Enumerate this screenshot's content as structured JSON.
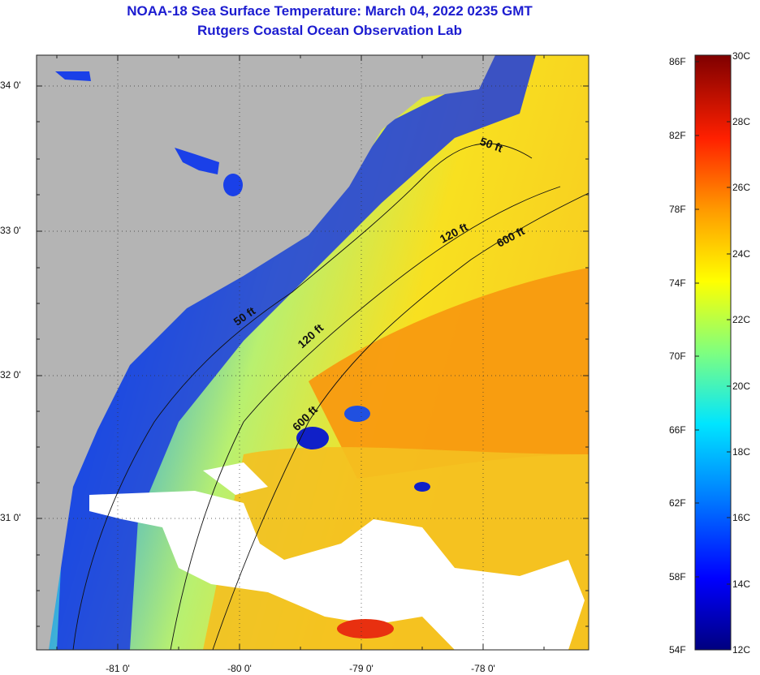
{
  "header": {
    "title": "NOAA-18 Sea Surface Temperature:  March 04, 2022 0235 GMT",
    "subtitle": "Rutgers Coastal Ocean Observation Lab"
  },
  "map": {
    "lat_labels": [
      "34 0'",
      "33 0'",
      "32 0'",
      "31 0'"
    ],
    "lon_labels": [
      "-81 0'",
      "-80 0'",
      "-79 0'",
      "-78 0'"
    ],
    "land_color": "#b4b4b4",
    "cloud_color": "#ffffff",
    "contours": [
      {
        "label": "50 ft"
      },
      {
        "label": "120 ft"
      },
      {
        "label": "600 ft"
      },
      {
        "label": "50 ft"
      },
      {
        "label": "120 ft"
      },
      {
        "label": "600 ft"
      }
    ]
  },
  "colorbar": {
    "fahrenheit_labels": [
      "86F",
      "82F",
      "78F",
      "74F",
      "70F",
      "66F",
      "62F",
      "58F",
      "54F"
    ],
    "celsius_labels": [
      "30C",
      "28C",
      "26C",
      "24C",
      "22C",
      "20C",
      "18C",
      "16C",
      "14C",
      "12C"
    ],
    "colors": [
      "#00007f",
      "#0000ff",
      "#007fff",
      "#00ffff",
      "#7fff7f",
      "#ffff00",
      "#ff7f00",
      "#ff0000",
      "#7f0000"
    ]
  }
}
